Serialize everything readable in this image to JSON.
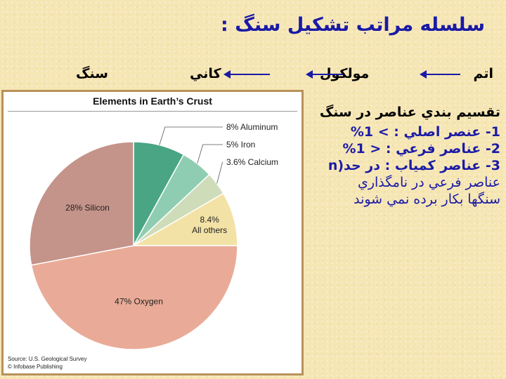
{
  "slide": {
    "title": "سلسله مراتب تشکیل سنگ :",
    "hierarchy": [
      "اتم",
      "مولکول",
      "كاني",
      "سنگ"
    ],
    "lines": [
      "تقسيم بندي عناصر در سنگ",
      "1- عنصر اصلي : > 1%",
      "2- عناصر فرعي : < 1%",
      "3- عناصر كمياب : در حد(n",
      "عناصر فرعي در نامگذاري",
      "سنگها بكار برده نمي شوند"
    ]
  },
  "chart_data": {
    "type": "pie",
    "title": "Elements in Earth’s Crust",
    "slices": [
      {
        "label": "Aluminum",
        "text": "8% Aluminum",
        "value": 8,
        "color": "#4aa585"
      },
      {
        "label": "Iron",
        "text": "5% Iron",
        "value": 5,
        "color": "#8fcdb2"
      },
      {
        "label": "Calcium",
        "text": "3.6% Calcium",
        "value": 3.6,
        "color": "#cfdcba"
      },
      {
        "label": "All others",
        "text": "8.4%|All others",
        "value": 8.4,
        "color": "#f3e2a6"
      },
      {
        "label": "Oxygen",
        "text": "47% Oxygen",
        "value": 47,
        "color": "#e9ab97"
      },
      {
        "label": "Silicon",
        "text": "28% Silicon",
        "value": 28,
        "color": "#c4938a"
      }
    ],
    "source": "Source: U.S. Geological Survey",
    "credit": "© Infobase Publishing"
  }
}
